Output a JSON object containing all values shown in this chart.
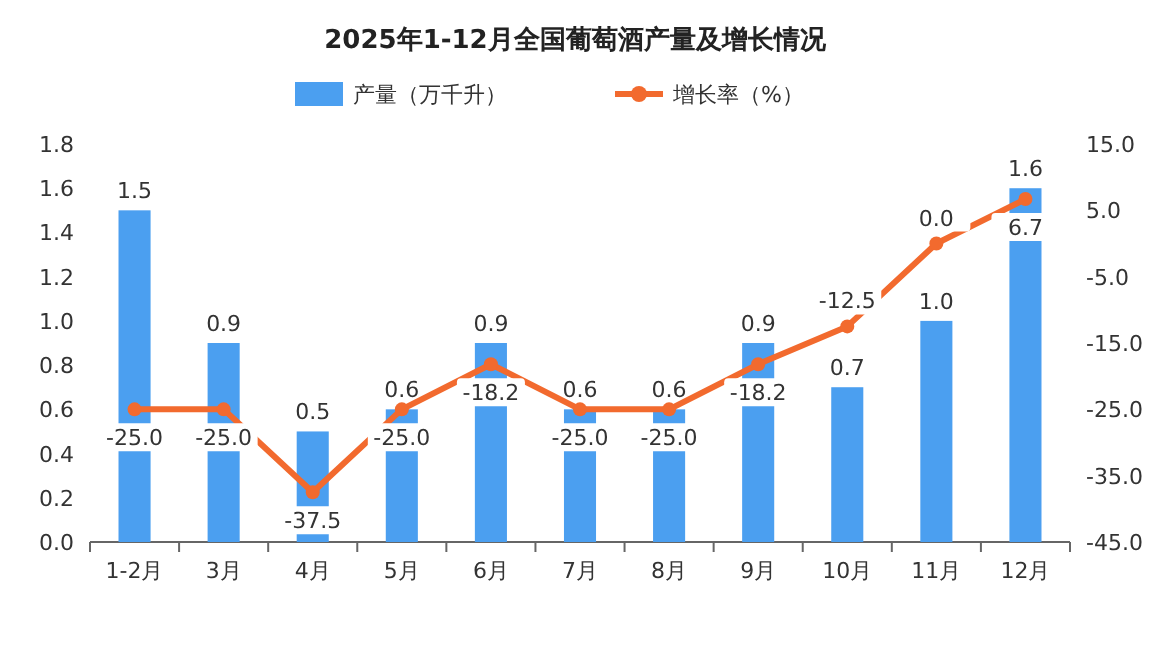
{
  "chart_data": {
    "type": "bar",
    "title": "2025年1-12月全国葡萄酒产量及增长情况",
    "categories": [
      "1-2月",
      "3月",
      "4月",
      "5月",
      "6月",
      "7月",
      "8月",
      "9月",
      "10月",
      "11月",
      "12月"
    ],
    "series": [
      {
        "name": "产量（万千升）",
        "color": "#4b9ff0",
        "values": [
          1.5,
          0.9,
          0.5,
          0.6,
          0.9,
          0.6,
          0.6,
          0.9,
          0.7,
          1.0,
          1.6
        ],
        "value_labels": [
          "1.5",
          "0.9",
          "0.5",
          "0.6",
          "0.9",
          "0.6",
          "0.6",
          "0.9",
          "0.7",
          "1.0",
          "1.6"
        ]
      },
      {
        "name": "增长率（%）",
        "type": "line",
        "axis": "y2",
        "color": "#f26a2e",
        "marker": "circle",
        "values": [
          -25.0,
          -25.0,
          -37.5,
          -25.0,
          -18.2,
          -25.0,
          -25.0,
          -18.2,
          -12.5,
          0.0,
          6.7
        ],
        "value_labels": [
          "-25.0",
          "-25.0",
          "-37.5",
          "-25.0",
          "-18.2",
          "-25.0",
          "-25.0",
          "-18.2",
          "-12.5",
          "0.0",
          "6.7"
        ]
      }
    ],
    "ylim": [
      0,
      1.8
    ],
    "yticks": [
      {
        "value": 0,
        "label": "0.0"
      },
      {
        "value": 0.2,
        "label": "0.2"
      },
      {
        "value": 0.4,
        "label": "0.4"
      },
      {
        "value": 0.6,
        "label": "0.6"
      },
      {
        "value": 0.8,
        "label": "0.8"
      },
      {
        "value": 1.0,
        "label": "1.0"
      },
      {
        "value": 1.2,
        "label": "1.2"
      },
      {
        "value": 1.4,
        "label": "1.4"
      },
      {
        "value": 1.6,
        "label": "1.6"
      },
      {
        "value": 1.8,
        "label": "1.8"
      }
    ],
    "y2lim": [
      -45,
      15
    ],
    "y2ticks": [
      {
        "value": -45,
        "label": "-45.0"
      },
      {
        "value": -35,
        "label": "-35.0"
      },
      {
        "value": -25,
        "label": "-25.0"
      },
      {
        "value": -15,
        "label": "-15.0"
      },
      {
        "value": -5,
        "label": "-5.0"
      },
      {
        "value": 5,
        "label": "5.0"
      },
      {
        "value": 15,
        "label": "15.0"
      }
    ],
    "legend": "top",
    "grid": false
  }
}
